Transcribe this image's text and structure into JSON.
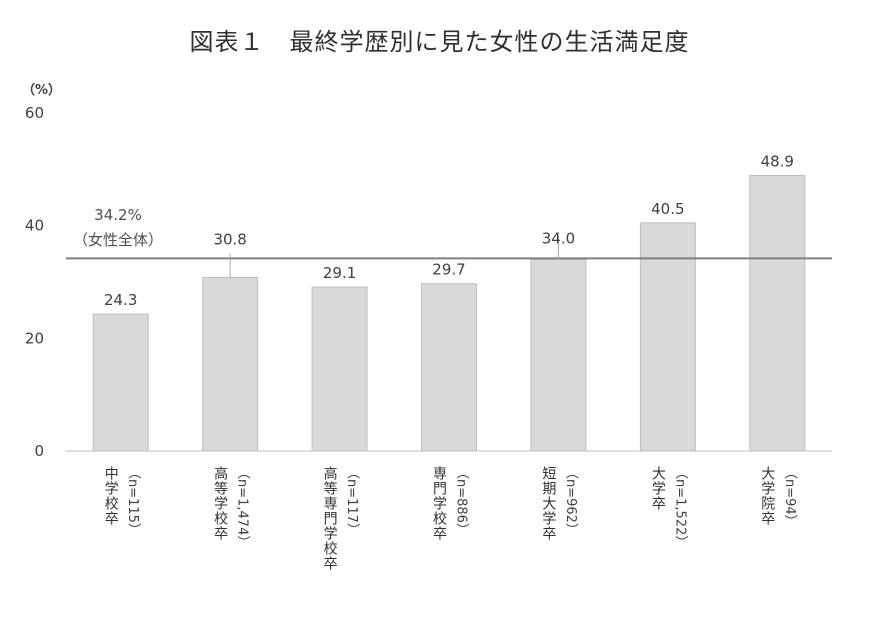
{
  "chart_data": {
    "type": "bar",
    "title": "図表１　最終学歴別に見た女性の生活満足度",
    "ylabel": "（%）",
    "ylim": [
      0,
      60
    ],
    "yticks": [
      0,
      20,
      40,
      60
    ],
    "categories": [
      {
        "name": "中学校卒",
        "n": "（n=115）"
      },
      {
        "name": "高等学校卒",
        "n": "（n=1,474）"
      },
      {
        "name": "高等専門学校卒",
        "n": "（n=117）"
      },
      {
        "name": "専門学校卒",
        "n": "（n=886）"
      },
      {
        "name": "短期大学卒",
        "n": "（n=962）"
      },
      {
        "name": "大学卒",
        "n": "（n=1,522）"
      },
      {
        "name": "大学院卒",
        "n": "（n=94）"
      }
    ],
    "values": [
      24.3,
      30.8,
      29.1,
      29.7,
      34.0,
      40.5,
      48.9
    ],
    "value_labels": [
      "24.3",
      "30.8",
      "29.1",
      "29.7",
      "34.0",
      "40.5",
      "48.9"
    ],
    "reference_line": {
      "value": 34.2,
      "label_value": "34.2%",
      "label_desc": "（女性全体）"
    },
    "grid": false,
    "colors": {
      "bar": "#d9d9d9",
      "bar_stroke": "#bfbfbf",
      "reference": "#7f7f7f",
      "axis": "#bfbfbf"
    }
  }
}
